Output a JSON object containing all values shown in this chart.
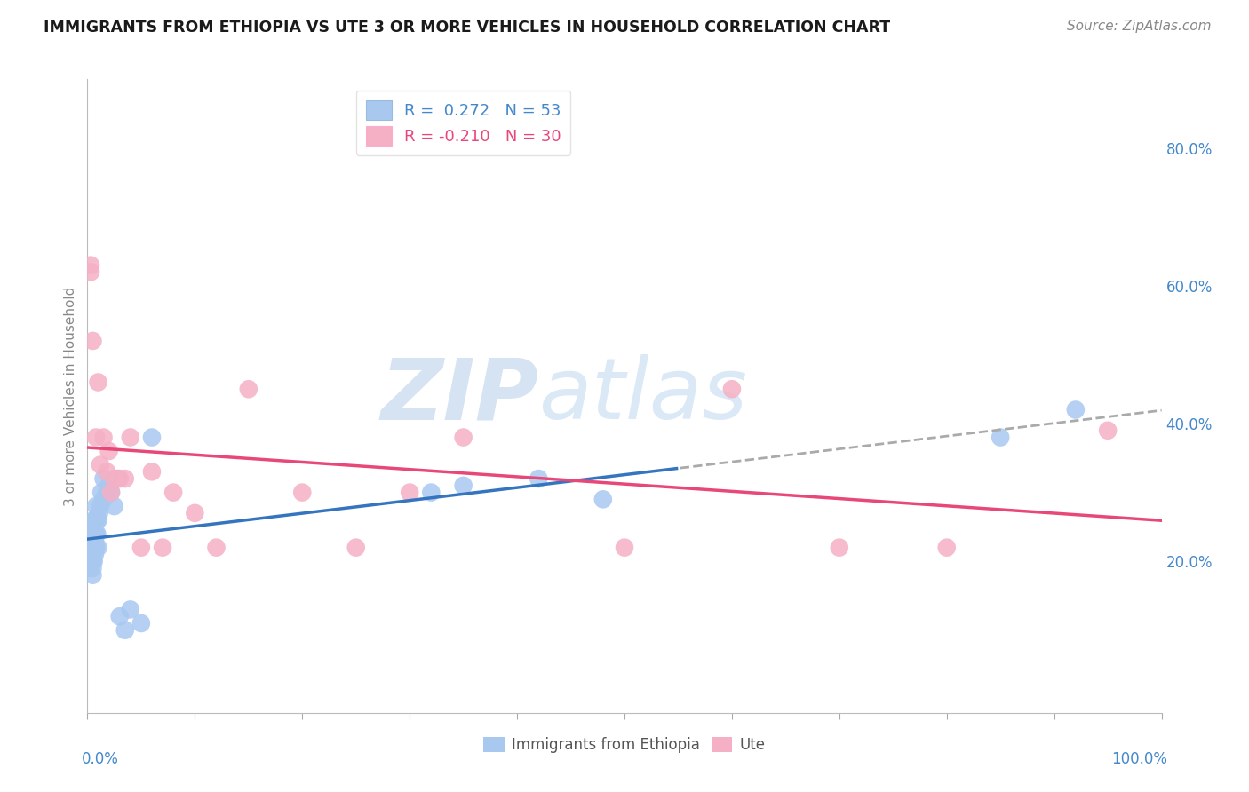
{
  "title": "IMMIGRANTS FROM ETHIOPIA VS UTE 3 OR MORE VEHICLES IN HOUSEHOLD CORRELATION CHART",
  "source": "Source: ZipAtlas.com",
  "ylabel_left": "3 or more Vehicles in Household",
  "xlim": [
    0.0,
    1.0
  ],
  "ylim": [
    -0.02,
    0.9
  ],
  "y_ticks_right": [
    0.2,
    0.4,
    0.6,
    0.8
  ],
  "legend_blue_r": " 0.272",
  "legend_blue_n": "53",
  "legend_pink_r": "-0.210",
  "legend_pink_n": "30",
  "blue_scatter_color": "#a8c8f0",
  "pink_scatter_color": "#f5b0c5",
  "blue_line_color": "#3575c0",
  "pink_line_color": "#e84878",
  "dashed_line_color": "#aaaaaa",
  "grid_color": "#cccccc",
  "bg_color": "#ffffff",
  "title_color": "#1a1a1a",
  "right_axis_color": "#4488cc",
  "bottom_label_color": "#4488cc",
  "watermark_color": "#d0e8f8",
  "source_color": "#888888",
  "legend_blue_label": "Immigrants from Ethiopia",
  "legend_pink_label": "Ute",
  "blue_points_x": [
    0.001,
    0.001,
    0.002,
    0.002,
    0.002,
    0.003,
    0.003,
    0.003,
    0.003,
    0.004,
    0.004,
    0.004,
    0.004,
    0.005,
    0.005,
    0.005,
    0.005,
    0.005,
    0.006,
    0.006,
    0.006,
    0.006,
    0.007,
    0.007,
    0.007,
    0.008,
    0.008,
    0.008,
    0.009,
    0.009,
    0.01,
    0.01,
    0.011,
    0.012,
    0.013,
    0.015,
    0.015,
    0.018,
    0.02,
    0.022,
    0.025,
    0.028,
    0.03,
    0.035,
    0.04,
    0.05,
    0.06,
    0.32,
    0.35,
    0.42,
    0.48,
    0.85,
    0.92
  ],
  "blue_points_y": [
    0.21,
    0.22,
    0.19,
    0.22,
    0.24,
    0.2,
    0.21,
    0.23,
    0.24,
    0.2,
    0.22,
    0.23,
    0.25,
    0.18,
    0.19,
    0.2,
    0.21,
    0.23,
    0.2,
    0.22,
    0.24,
    0.26,
    0.21,
    0.23,
    0.26,
    0.22,
    0.24,
    0.28,
    0.24,
    0.26,
    0.22,
    0.26,
    0.27,
    0.28,
    0.3,
    0.29,
    0.32,
    0.3,
    0.31,
    0.3,
    0.28,
    0.32,
    0.12,
    0.1,
    0.13,
    0.11,
    0.38,
    0.3,
    0.31,
    0.32,
    0.29,
    0.38,
    0.42
  ],
  "pink_points_x": [
    0.003,
    0.003,
    0.005,
    0.008,
    0.01,
    0.012,
    0.015,
    0.018,
    0.02,
    0.022,
    0.025,
    0.03,
    0.035,
    0.04,
    0.05,
    0.06,
    0.07,
    0.08,
    0.1,
    0.12,
    0.15,
    0.2,
    0.25,
    0.3,
    0.35,
    0.5,
    0.6,
    0.7,
    0.8,
    0.95
  ],
  "pink_points_y": [
    0.62,
    0.63,
    0.52,
    0.38,
    0.46,
    0.34,
    0.38,
    0.33,
    0.36,
    0.3,
    0.32,
    0.32,
    0.32,
    0.38,
    0.22,
    0.33,
    0.22,
    0.3,
    0.27,
    0.22,
    0.45,
    0.3,
    0.22,
    0.3,
    0.38,
    0.22,
    0.45,
    0.22,
    0.22,
    0.39
  ]
}
